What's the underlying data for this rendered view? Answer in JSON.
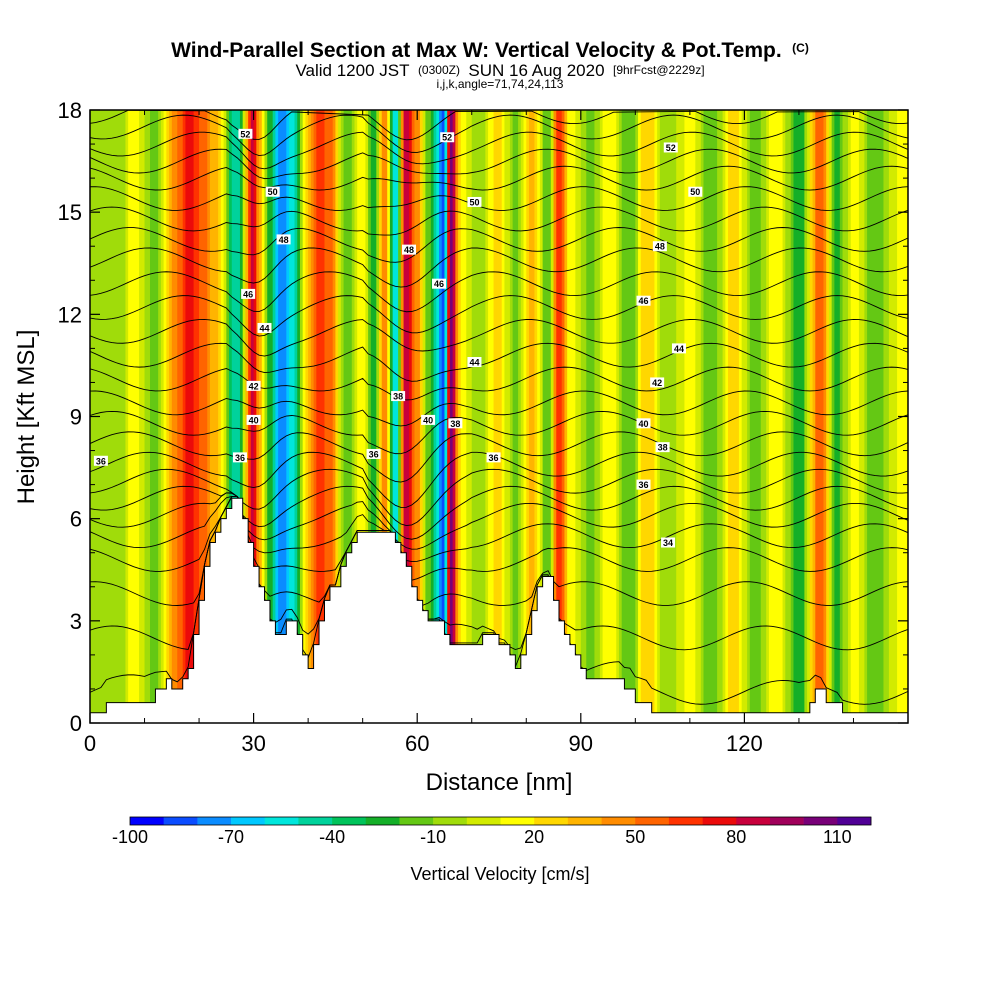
{
  "chart_data": {
    "type": "heatmap",
    "title": "Wind-Parallel Section at Max W: Vertical Velocity & Pot.Temp.",
    "title_mark": "(C)",
    "subtitle": {
      "a": "Valid 1200 JST",
      "b": "(0300Z)",
      "c": "SUN 16 Aug 2020",
      "d": "[9hrFcst@2229z]"
    },
    "subtitle2": "i,j,k,angle=71,74,24,113",
    "xlabel": "Distance [nm]",
    "ylabel": "Height [Kft MSL]",
    "xlim": [
      0,
      150
    ],
    "ylim": [
      0,
      18
    ],
    "x_ticks": [
      0,
      30,
      60,
      90,
      120
    ],
    "y_ticks": [
      0,
      3,
      6,
      9,
      12,
      15,
      18
    ],
    "colorbar": {
      "label": "Vertical Velocity [cm/s]",
      "min": -100,
      "max": 120,
      "step": 10,
      "tick_labels": [
        "-100",
        "-70",
        "-40",
        "-10",
        "20",
        "50",
        "80",
        "110"
      ],
      "colors": [
        "#0000ff",
        "#0a4cff",
        "#0a8cff",
        "#00c8ff",
        "#00e6dc",
        "#00d29b",
        "#00c35a",
        "#14af28",
        "#64c814",
        "#a0dc0a",
        "#d2eb00",
        "#ffff00",
        "#ffd700",
        "#ffb400",
        "#ff8c00",
        "#ff6400",
        "#ff3200",
        "#eb0a0a",
        "#c8003c",
        "#a0005a",
        "#780078",
        "#500096"
      ]
    },
    "terrain": {
      "x": [
        0,
        2,
        3,
        8,
        10,
        12,
        14,
        15,
        16,
        17,
        18,
        19,
        20,
        21,
        22,
        23,
        24,
        25,
        26,
        27,
        28,
        29,
        30,
        31,
        32,
        33,
        34,
        35,
        36,
        37,
        38,
        39,
        40,
        41,
        42,
        43,
        44,
        45,
        46,
        47,
        48,
        49,
        50,
        51,
        52,
        53,
        54,
        55,
        56,
        57,
        58,
        59,
        60,
        61,
        62,
        63,
        64,
        65,
        66,
        67,
        68,
        69,
        70,
        71,
        72,
        73,
        74,
        75,
        76,
        77,
        78,
        79,
        80,
        81,
        82,
        83,
        84,
        85,
        86,
        87,
        88,
        89,
        90,
        91,
        92,
        93,
        94,
        95,
        96,
        97,
        98,
        99,
        100,
        101,
        102,
        103,
        104,
        105,
        106,
        107,
        108,
        109,
        110,
        112,
        114,
        116,
        118,
        120,
        122,
        124,
        126,
        128,
        130,
        132,
        133,
        134,
        135,
        136,
        137,
        138,
        139,
        140,
        142,
        144,
        146,
        148,
        150
      ],
      "y": [
        0.3,
        0.3,
        0.6,
        0.6,
        0.6,
        1.0,
        1.3,
        1.0,
        1.0,
        1.3,
        1.6,
        2.6,
        3.6,
        4.6,
        5.3,
        5.6,
        6.0,
        6.3,
        6.6,
        6.6,
        6.0,
        5.3,
        4.6,
        4.0,
        3.6,
        3.0,
        2.6,
        2.6,
        3.0,
        3.0,
        2.6,
        2.0,
        1.6,
        2.3,
        3.0,
        3.6,
        4.0,
        4.0,
        4.6,
        5.0,
        5.3,
        5.6,
        5.6,
        5.6,
        5.6,
        5.6,
        5.6,
        5.6,
        5.3,
        5.0,
        4.6,
        4.0,
        3.6,
        3.3,
        3.0,
        3.0,
        3.0,
        2.6,
        2.3,
        2.3,
        2.3,
        2.3,
        2.3,
        2.3,
        2.6,
        2.6,
        2.6,
        2.3,
        2.3,
        2.0,
        1.6,
        2.0,
        2.6,
        3.3,
        4.0,
        4.3,
        4.3,
        3.6,
        3.0,
        2.6,
        2.3,
        2.0,
        1.6,
        1.3,
        1.3,
        1.3,
        1.3,
        1.3,
        1.3,
        1.3,
        1.0,
        1.0,
        0.6,
        0.6,
        0.6,
        0.3,
        0.3,
        0.3,
        0.3,
        0.3,
        0.3,
        0.3,
        0.3,
        0.3,
        0.3,
        0.3,
        0.3,
        0.3,
        0.3,
        0.3,
        0.3,
        0.3,
        0.3,
        0.6,
        1.0,
        1.0,
        0.6,
        0.6,
        0.6,
        0.3,
        0.3,
        0.3,
        0.3,
        0.3,
        0.3,
        0.3,
        0.3
      ]
    },
    "features": [
      {
        "x": 2,
        "v": -5
      },
      {
        "x": 5,
        "v": -10
      },
      {
        "x": 8,
        "v": 15
      },
      {
        "x": 12,
        "v": -15
      },
      {
        "x": 16,
        "v": 50
      },
      {
        "x": 18,
        "v": 75
      },
      {
        "x": 20,
        "v": 60
      },
      {
        "x": 23,
        "v": 35
      },
      {
        "x": 27,
        "v": -50
      },
      {
        "x": 30,
        "v": 85
      },
      {
        "x": 31,
        "v": 40
      },
      {
        "x": 33,
        "v": -25
      },
      {
        "x": 35,
        "v": -80
      },
      {
        "x": 37,
        "v": -55
      },
      {
        "x": 40,
        "v": 30
      },
      {
        "x": 42,
        "v": 70
      },
      {
        "x": 44,
        "v": 55
      },
      {
        "x": 47,
        "v": -20
      },
      {
        "x": 50,
        "v": 20
      },
      {
        "x": 52,
        "v": -30
      },
      {
        "x": 54,
        "v": 45
      },
      {
        "x": 56,
        "v": -60
      },
      {
        "x": 58,
        "v": 90
      },
      {
        "x": 60,
        "v": 45
      },
      {
        "x": 62,
        "v": -15
      },
      {
        "x": 65,
        "v": -85
      },
      {
        "x": 66,
        "v": 110
      },
      {
        "x": 68,
        "v": 20
      },
      {
        "x": 71,
        "v": -10
      },
      {
        "x": 75,
        "v": 25
      },
      {
        "x": 78,
        "v": -15
      },
      {
        "x": 81,
        "v": 35
      },
      {
        "x": 84,
        "v": -20
      },
      {
        "x": 86,
        "v": 70
      },
      {
        "x": 88,
        "v": 15
      },
      {
        "x": 92,
        "v": -15
      },
      {
        "x": 95,
        "v": 20
      },
      {
        "x": 99,
        "v": -20
      },
      {
        "x": 102,
        "v": 30
      },
      {
        "x": 106,
        "v": -10
      },
      {
        "x": 110,
        "v": 15
      },
      {
        "x": 114,
        "v": -20
      },
      {
        "x": 118,
        "v": 25
      },
      {
        "x": 122,
        "v": -15
      },
      {
        "x": 126,
        "v": 20
      },
      {
        "x": 130,
        "v": -30
      },
      {
        "x": 134,
        "v": 60
      },
      {
        "x": 137,
        "v": -25
      },
      {
        "x": 140,
        "v": 15
      },
      {
        "x": 144,
        "v": -20
      },
      {
        "x": 148,
        "v": 10
      }
    ],
    "theta_contours": {
      "levels": [
        28,
        29,
        30,
        31,
        32,
        33,
        34,
        35,
        36,
        37,
        38,
        39,
        40,
        41,
        42,
        43,
        44,
        45,
        46,
        47,
        48,
        49,
        50,
        51,
        52,
        53
      ],
      "base_heights_kft": [
        0.9,
        2.5,
        3.8,
        4.8,
        5.5,
        6.1,
        6.6,
        7.1,
        7.6,
        8.2,
        8.8,
        9.4,
        10.1,
        10.8,
        11.5,
        12.2,
        12.9,
        13.6,
        14.2,
        14.8,
        15.4,
        16.0,
        16.5,
        17.0,
        17.5,
        17.95
      ]
    },
    "contour_labels": [
      {
        "x": 2,
        "y": 7.7,
        "text": "36"
      },
      {
        "x": 27.5,
        "y": 7.8,
        "text": "36"
      },
      {
        "x": 30,
        "y": 8.9,
        "text": "40"
      },
      {
        "x": 30,
        "y": 9.9,
        "text": "42"
      },
      {
        "x": 32,
        "y": 11.6,
        "text": "44"
      },
      {
        "x": 29,
        "y": 12.6,
        "text": "46"
      },
      {
        "x": 35.5,
        "y": 14.2,
        "text": "48"
      },
      {
        "x": 33.5,
        "y": 15.6,
        "text": "50"
      },
      {
        "x": 28.5,
        "y": 17.3,
        "text": "52"
      },
      {
        "x": 52,
        "y": 7.9,
        "text": "36"
      },
      {
        "x": 56.5,
        "y": 9.6,
        "text": "38"
      },
      {
        "x": 62,
        "y": 8.9,
        "text": "40"
      },
      {
        "x": 67,
        "y": 8.8,
        "text": "38"
      },
      {
        "x": 58.5,
        "y": 13.9,
        "text": "48"
      },
      {
        "x": 64,
        "y": 12.9,
        "text": "46"
      },
      {
        "x": 70.5,
        "y": 10.6,
        "text": "44"
      },
      {
        "x": 70.5,
        "y": 15.3,
        "text": "50"
      },
      {
        "x": 65.5,
        "y": 17.2,
        "text": "52"
      },
      {
        "x": 74,
        "y": 7.8,
        "text": "36"
      },
      {
        "x": 101.5,
        "y": 7.0,
        "text": "36"
      },
      {
        "x": 106,
        "y": 5.3,
        "text": "34"
      },
      {
        "x": 101.5,
        "y": 8.8,
        "text": "40"
      },
      {
        "x": 105,
        "y": 8.1,
        "text": "38"
      },
      {
        "x": 104,
        "y": 10.0,
        "text": "42"
      },
      {
        "x": 108,
        "y": 11.0,
        "text": "44"
      },
      {
        "x": 101.5,
        "y": 12.4,
        "text": "46"
      },
      {
        "x": 104.5,
        "y": 14.0,
        "text": "48"
      },
      {
        "x": 111,
        "y": 15.6,
        "text": "50"
      },
      {
        "x": 106.5,
        "y": 16.9,
        "text": "52"
      }
    ]
  }
}
